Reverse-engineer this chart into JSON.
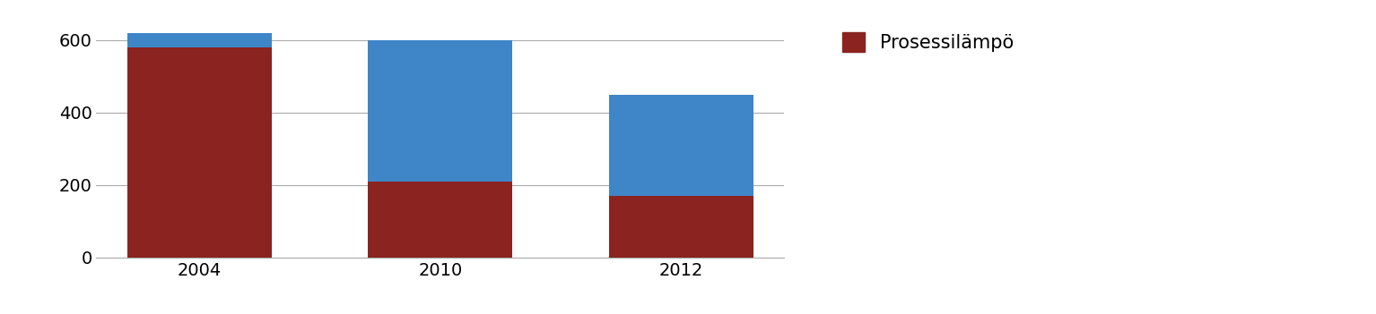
{
  "categories": [
    "2004",
    "2010",
    "2012"
  ],
  "brown_values": [
    580,
    210,
    170
  ],
  "blue_values": [
    40,
    390,
    280
  ],
  "brown_color": "#8B2320",
  "blue_color": "#3E86C8",
  "legend_label": "Prosessilämpö",
  "ylim": [
    0,
    650
  ],
  "yticks": [
    0,
    200,
    400,
    600
  ],
  "bar_width": 0.6,
  "figsize": [
    15.34,
    3.51
  ],
  "dpi": 100,
  "bg_color": "#FFFFFF",
  "grid_color": "#AAAAAA",
  "tick_fontsize": 14,
  "legend_fontsize": 15
}
